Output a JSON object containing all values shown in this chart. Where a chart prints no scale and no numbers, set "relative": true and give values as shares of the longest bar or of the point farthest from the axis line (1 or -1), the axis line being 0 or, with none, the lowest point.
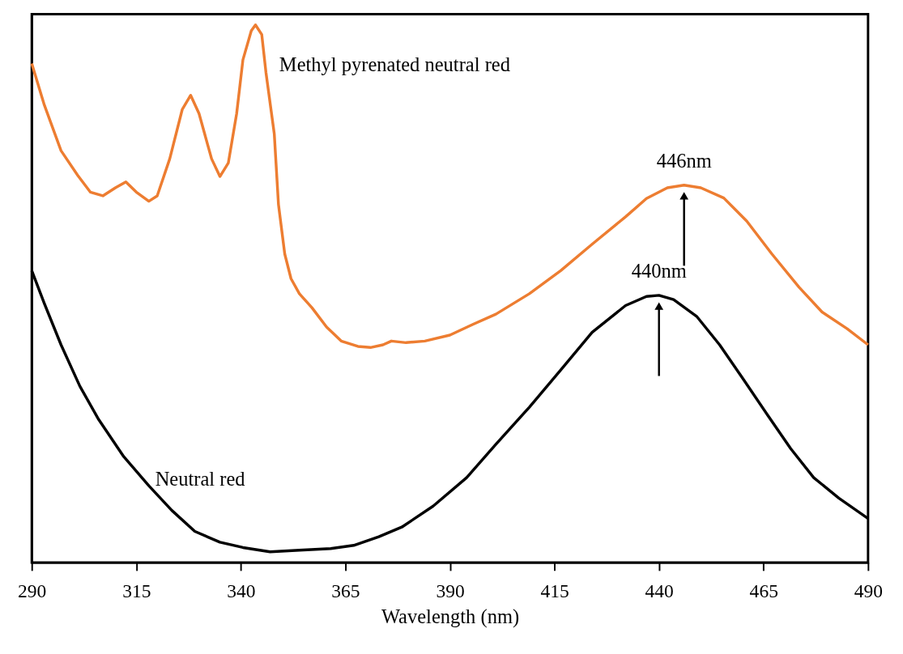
{
  "chart_data": {
    "type": "line",
    "xlabel": "Wavelength (nm)",
    "relative": true,
    "xlim": [
      290,
      490
    ],
    "xticks": [
      290,
      315,
      340,
      365,
      390,
      415,
      440,
      465,
      490
    ],
    "grid": false,
    "legend": false,
    "line_style": "solid",
    "marker": "none",
    "series": [
      {
        "name": "Methyl pyrenated neutral red",
        "color": "#ed7d31",
        "x": [
          290,
          293,
          297,
          301,
          304,
          307,
          310,
          312.5,
          315,
          318,
          320,
          323,
          326,
          328,
          330,
          333,
          335,
          337,
          339,
          340.5,
          342.5,
          343.5,
          345,
          346,
          348,
          349,
          350.5,
          352,
          354,
          357,
          360.5,
          364,
          368,
          371,
          374,
          376,
          379.5,
          384,
          390,
          395.5,
          401,
          409,
          416.5,
          424,
          432,
          437,
          442,
          446,
          450,
          455.5,
          461,
          467,
          473.5,
          479,
          485,
          490
        ],
        "values": [
          0.928,
          0.851,
          0.766,
          0.72,
          0.689,
          0.682,
          0.697,
          0.708,
          0.689,
          0.672,
          0.682,
          0.751,
          0.843,
          0.869,
          0.835,
          0.751,
          0.718,
          0.743,
          0.835,
          0.935,
          0.989,
          1.0,
          0.982,
          0.912,
          0.797,
          0.666,
          0.574,
          0.528,
          0.5,
          0.474,
          0.438,
          0.412,
          0.402,
          0.4,
          0.405,
          0.412,
          0.409,
          0.412,
          0.423,
          0.443,
          0.462,
          0.5,
          0.543,
          0.592,
          0.643,
          0.677,
          0.697,
          0.702,
          0.697,
          0.678,
          0.635,
          0.574,
          0.512,
          0.466,
          0.435,
          0.405
        ]
      },
      {
        "name": "Neutral red",
        "color": "#000000",
        "x": [
          290,
          293,
          297,
          301.5,
          306,
          312,
          318,
          323.5,
          329,
          335,
          340.5,
          347,
          354,
          361.5,
          367,
          373,
          378.5,
          386,
          394,
          401,
          409,
          416.5,
          424,
          432,
          437,
          440,
          443.5,
          449,
          454.5,
          460,
          466,
          471.5,
          477,
          483,
          490
        ],
        "values": [
          0.543,
          0.482,
          0.405,
          0.328,
          0.266,
          0.197,
          0.143,
          0.097,
          0.058,
          0.038,
          0.028,
          0.02,
          0.023,
          0.026,
          0.032,
          0.048,
          0.066,
          0.105,
          0.158,
          0.22,
          0.289,
          0.358,
          0.428,
          0.478,
          0.495,
          0.497,
          0.489,
          0.458,
          0.405,
          0.343,
          0.274,
          0.212,
          0.158,
          0.12,
          0.082
        ]
      }
    ],
    "annotations": [
      {
        "text": "446nm",
        "x": 446,
        "y": 0.702
      },
      {
        "text": "440nm",
        "x": 440,
        "y": 0.497
      }
    ]
  }
}
